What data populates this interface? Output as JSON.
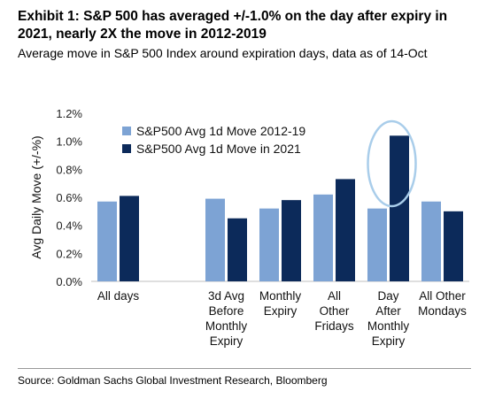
{
  "title": "Exhibit 1: S&P 500 has averaged +/-1.0% on the day after expiry in 2021, nearly 2X the move in 2012-2019",
  "subtitle": "Average move in S&P 500 Index around expiration days, data as of 14-Oct",
  "source": "Source: Goldman Sachs Global Investment Research, Bloomberg",
  "chart_data": {
    "type": "bar",
    "ylabel": "Avg Daily Move (+/-%)",
    "ylim": [
      0,
      1.2
    ],
    "yticks": [
      0,
      0.2,
      0.4,
      0.6,
      0.8,
      1.0,
      1.2
    ],
    "ytick_labels": [
      "0.0%",
      "0.2%",
      "0.4%",
      "0.6%",
      "0.8%",
      "1.0%",
      "1.2%"
    ],
    "grid": false,
    "legend_position": "top-center",
    "categories": [
      [
        "All days"
      ],
      [],
      [
        "3d Avg",
        "Before",
        "Monthly",
        "Expiry"
      ],
      [
        "Monthly",
        "Expiry"
      ],
      [
        "All",
        "Other",
        "Fridays"
      ],
      [
        "Day",
        "After",
        "Monthly",
        "Expiry"
      ],
      [
        "All Other",
        "Mondays"
      ]
    ],
    "series": [
      {
        "name": "S&P500 Avg 1d Move 2012-19",
        "color": "#7da3d4",
        "values": [
          0.57,
          null,
          0.59,
          0.52,
          0.62,
          0.52,
          0.57
        ]
      },
      {
        "name": "S&P500 Avg 1d Move in 2021",
        "color": "#0c2a5a",
        "values": [
          0.61,
          null,
          0.45,
          0.58,
          0.73,
          1.04,
          0.5
        ]
      }
    ],
    "highlight": {
      "category_index": 5,
      "shape": "ellipse",
      "color": "#a9cdea"
    }
  }
}
